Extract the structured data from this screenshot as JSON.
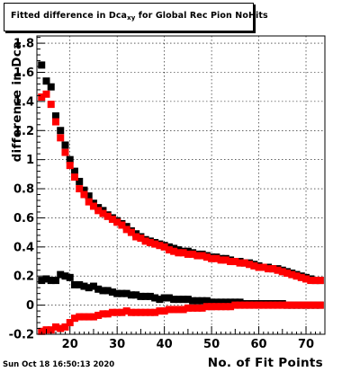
{
  "title": {
    "prefix": "Fitted difference in Dca",
    "subscript": "xy",
    "suffix": " for Global Rec Pion NoHits"
  },
  "timestamp": "Sun Oct 18 16:50:13 2020",
  "xlabel": "No. of Fit Points",
  "ylabel": "difference in Dca",
  "colors": {
    "black_series": "#000000",
    "red_series": "#ff0000",
    "frame": "#000000",
    "grid": "#000000"
  },
  "chart_data": {
    "type": "scatter",
    "title": "Fitted difference in Dca_xy for Global Rec Pion NoHits",
    "xlabel": "No. of Fit Points",
    "ylabel": "difference in Dca",
    "xlim": [
      13,
      74
    ],
    "ylim": [
      -0.2,
      1.85
    ],
    "xticks": [
      20,
      30,
      40,
      50,
      60,
      70
    ],
    "yticks": [
      -0.2,
      0,
      0.2,
      0.4,
      0.6,
      0.8,
      1,
      1.2,
      1.4,
      1.6,
      1.8
    ],
    "grid": true,
    "series": [
      {
        "color": "#000000",
        "x": [
          14,
          15,
          16,
          17,
          18,
          19,
          20,
          21,
          22,
          23,
          24,
          25,
          26,
          27,
          28,
          29,
          30,
          31,
          32,
          33,
          34,
          35,
          36,
          37,
          38,
          39,
          40,
          41,
          42,
          43,
          44,
          45,
          46,
          47,
          48,
          49,
          50,
          51,
          52,
          53,
          54,
          55,
          56,
          57,
          58,
          59,
          60,
          61,
          62,
          63,
          64,
          65,
          66,
          67,
          68,
          69,
          70,
          71,
          72,
          73
        ],
        "y": [
          1.65,
          1.54,
          1.5,
          1.3,
          1.2,
          1.1,
          1.0,
          0.92,
          0.85,
          0.79,
          0.75,
          0.7,
          0.67,
          0.65,
          0.62,
          0.6,
          0.58,
          0.56,
          0.54,
          0.51,
          0.49,
          0.47,
          0.45,
          0.44,
          0.43,
          0.42,
          0.41,
          0.4,
          0.39,
          0.38,
          0.37,
          0.37,
          0.36,
          0.35,
          0.35,
          0.34,
          0.33,
          0.33,
          0.32,
          0.32,
          0.31,
          0.3,
          0.3,
          0.29,
          0.29,
          0.28,
          0.27,
          0.26,
          0.26,
          0.25,
          0.25,
          0.24,
          0.23,
          0.22,
          0.21,
          0.2,
          0.19,
          0.18,
          0.17,
          0.17
        ]
      },
      {
        "color": "#ff0000",
        "x": [
          14,
          15,
          16,
          17,
          18,
          19,
          20,
          21,
          22,
          23,
          24,
          25,
          26,
          27,
          28,
          29,
          30,
          31,
          32,
          33,
          34,
          35,
          36,
          37,
          38,
          39,
          40,
          41,
          42,
          43,
          44,
          45,
          46,
          47,
          48,
          49,
          50,
          51,
          52,
          53,
          54,
          55,
          56,
          57,
          58,
          59,
          60,
          61,
          62,
          63,
          64,
          65,
          66,
          67,
          68,
          69,
          70,
          71,
          72,
          73
        ],
        "y": [
          1.43,
          1.45,
          1.38,
          1.26,
          1.15,
          1.05,
          0.96,
          0.88,
          0.8,
          0.76,
          0.71,
          0.68,
          0.65,
          0.63,
          0.61,
          0.59,
          0.57,
          0.55,
          0.52,
          0.5,
          0.47,
          0.46,
          0.44,
          0.43,
          0.42,
          0.41,
          0.4,
          0.38,
          0.37,
          0.36,
          0.36,
          0.35,
          0.35,
          0.34,
          0.34,
          0.33,
          0.32,
          0.32,
          0.31,
          0.31,
          0.3,
          0.3,
          0.29,
          0.29,
          0.28,
          0.27,
          0.26,
          0.26,
          0.25,
          0.25,
          0.24,
          0.23,
          0.22,
          0.21,
          0.2,
          0.19,
          0.18,
          0.17,
          0.17,
          0.17
        ]
      },
      {
        "color": "#000000",
        "x": [
          14,
          15,
          16,
          17,
          18,
          19,
          20,
          21,
          22,
          23,
          24,
          25,
          26,
          27,
          28,
          29,
          30,
          31,
          32,
          33,
          34,
          35,
          36,
          37,
          38,
          39,
          40,
          41,
          42,
          43,
          44,
          45,
          46,
          47,
          48,
          49,
          50,
          51,
          52,
          53,
          54,
          55,
          56,
          57,
          58,
          59,
          60,
          61,
          62,
          63,
          64,
          65,
          66,
          67,
          68,
          69,
          70,
          71,
          72,
          73
        ],
        "y": [
          0.17,
          0.18,
          0.17,
          0.17,
          0.21,
          0.2,
          0.19,
          0.14,
          0.14,
          0.13,
          0.12,
          0.13,
          0.11,
          0.1,
          0.1,
          0.09,
          0.08,
          0.08,
          0.08,
          0.07,
          0.07,
          0.06,
          0.06,
          0.06,
          0.05,
          0.04,
          0.05,
          0.05,
          0.04,
          0.04,
          0.04,
          0.04,
          0.03,
          0.03,
          0.03,
          0.03,
          0.02,
          0.02,
          0.02,
          0.02,
          0.02,
          0.02,
          0.02,
          0.01,
          0.01,
          0.01,
          0.01,
          0.01,
          0.01,
          0.01,
          0.01,
          0.01,
          0.0,
          0.0,
          0.0,
          0.0,
          0.0,
          0.0,
          0.0,
          0.0
        ]
      },
      {
        "color": "#ff0000",
        "x": [
          14,
          15,
          16,
          17,
          18,
          19,
          20,
          21,
          22,
          23,
          24,
          25,
          26,
          27,
          28,
          29,
          30,
          31,
          32,
          33,
          34,
          35,
          36,
          37,
          38,
          39,
          40,
          41,
          42,
          43,
          44,
          45,
          46,
          47,
          48,
          49,
          50,
          51,
          52,
          53,
          54,
          55,
          56,
          57,
          58,
          59,
          60,
          61,
          62,
          63,
          64,
          65,
          66,
          67,
          68,
          69,
          70,
          71,
          72,
          73
        ],
        "y": [
          -0.18,
          -0.17,
          -0.17,
          -0.15,
          -0.16,
          -0.15,
          -0.12,
          -0.09,
          -0.08,
          -0.08,
          -0.08,
          -0.08,
          -0.07,
          -0.06,
          -0.06,
          -0.05,
          -0.05,
          -0.05,
          -0.04,
          -0.05,
          -0.05,
          -0.05,
          -0.05,
          -0.05,
          -0.05,
          -0.04,
          -0.04,
          -0.03,
          -0.03,
          -0.03,
          -0.03,
          -0.02,
          -0.02,
          -0.02,
          -0.02,
          -0.01,
          -0.01,
          -0.01,
          -0.01,
          -0.01,
          -0.01,
          0.0,
          0.0,
          0.0,
          0.0,
          0.0,
          0.0,
          0.0,
          0.0,
          0.0,
          0.0,
          0.0,
          0.0,
          0.0,
          0.0,
          0.0,
          0.0,
          0.0,
          0.0,
          0.0
        ]
      }
    ]
  }
}
